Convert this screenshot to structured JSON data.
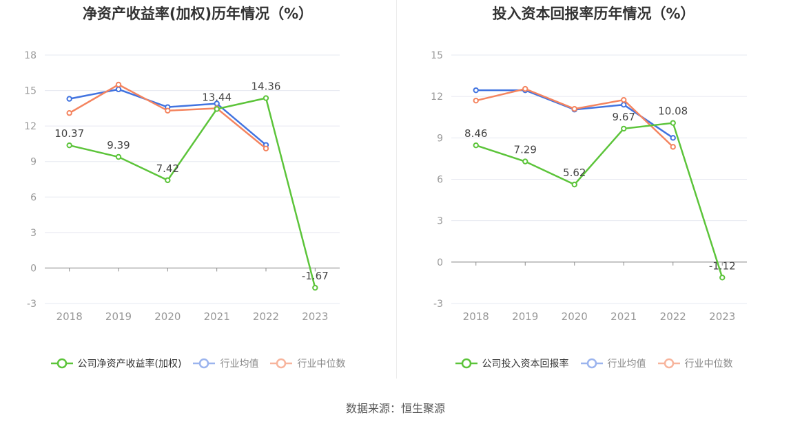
{
  "source": "数据来源：恒生聚源",
  "chart_data": [
    {
      "type": "line",
      "title": "净资产收益率(加权)历年情况（%）",
      "categories": [
        "2018",
        "2019",
        "2020",
        "2021",
        "2022",
        "2023"
      ],
      "ylim": [
        -3,
        18
      ],
      "yticks": [
        -3,
        0,
        3,
        6,
        9,
        12,
        15,
        18
      ],
      "legend_position": "bottom",
      "grid": true,
      "series": [
        {
          "name": "公司净资产收益率(加权)",
          "color": "#5cc43a",
          "values": [
            10.37,
            9.39,
            7.42,
            13.44,
            14.36,
            -1.67
          ],
          "labels": true
        },
        {
          "name": "行业均值",
          "color": "#4173e0",
          "values": [
            14.3,
            15.1,
            13.6,
            13.9,
            10.4,
            null
          ],
          "labels": false
        },
        {
          "name": "行业中位数",
          "color": "#f4845f",
          "values": [
            13.1,
            15.5,
            13.3,
            13.5,
            10.1,
            null
          ],
          "labels": false
        }
      ]
    },
    {
      "type": "line",
      "title": "投入资本回报率历年情况（%）",
      "categories": [
        "2018",
        "2019",
        "2020",
        "2021",
        "2022",
        "2023"
      ],
      "ylim": [
        -3,
        15
      ],
      "yticks": [
        -3,
        0,
        3,
        6,
        9,
        12,
        15
      ],
      "legend_position": "bottom",
      "grid": true,
      "series": [
        {
          "name": "公司投入资本回报率",
          "color": "#5cc43a",
          "values": [
            8.46,
            7.29,
            5.62,
            9.67,
            10.08,
            -1.12
          ],
          "labels": true
        },
        {
          "name": "行业均值",
          "color": "#4173e0",
          "values": [
            12.45,
            12.45,
            11.05,
            11.4,
            9.0,
            null
          ],
          "labels": false
        },
        {
          "name": "行业中位数",
          "color": "#f4845f",
          "values": [
            11.7,
            12.55,
            11.1,
            11.75,
            8.35,
            null
          ],
          "labels": false
        }
      ]
    }
  ]
}
